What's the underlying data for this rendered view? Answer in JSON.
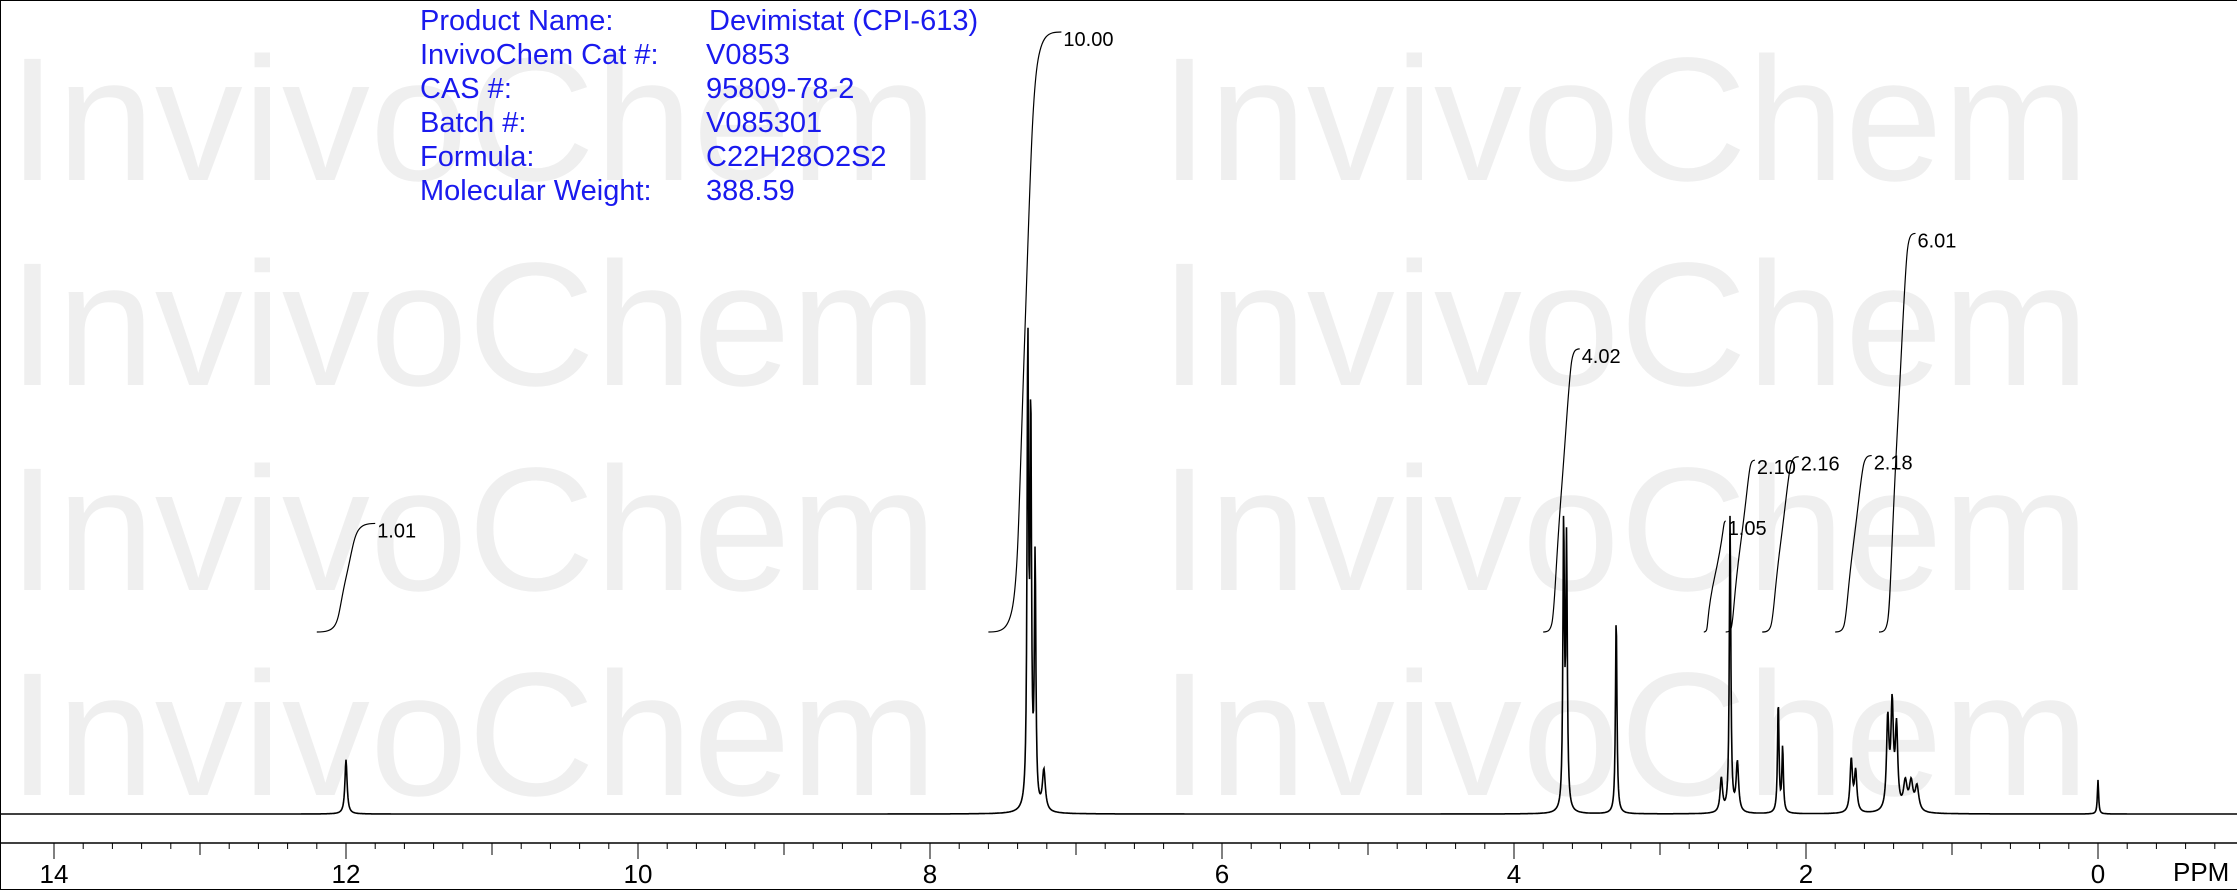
{
  "watermark": {
    "text": "InvivoChem"
  },
  "product_info": [
    {
      "label": "Product Name:",
      "value": "Devimistat (CPI-613)"
    },
    {
      "label": "InvivoChem Cat #:",
      "value": "V0853"
    },
    {
      "label": "CAS #:",
      "value": "95809-78-2"
    },
    {
      "label": "Batch #:",
      "value": "V085301"
    },
    {
      "label": "Formula:",
      "value": "C22H28O2S2"
    },
    {
      "label": "Molecular Weight:",
      "value": "388.59"
    }
  ],
  "colors": {
    "info_text": "#1a1aee",
    "watermark": "#efefef",
    "trace": "#000000"
  },
  "chart_data": {
    "type": "line",
    "title": "",
    "xlabel": "PPM",
    "ylabel": "",
    "xlim": [
      14.3,
      -0.9
    ],
    "x_reversed": true,
    "grid": false,
    "x_ticks": [
      14,
      12,
      10,
      8,
      6,
      4,
      2,
      0
    ],
    "peaks": [
      {
        "ppm": 12.0,
        "intensity": 0.175,
        "width": 0.009
      },
      {
        "ppm": 7.33,
        "intensity": 1.5,
        "width": 0.006
      },
      {
        "ppm": 7.31,
        "intensity": 1.25,
        "width": 0.006
      },
      {
        "ppm": 7.28,
        "intensity": 0.8,
        "width": 0.006
      },
      {
        "ppm": 7.22,
        "intensity": 0.13,
        "width": 0.012
      },
      {
        "ppm": 3.66,
        "intensity": 0.92,
        "width": 0.006
      },
      {
        "ppm": 3.64,
        "intensity": 0.85,
        "width": 0.006
      },
      {
        "ppm": 3.3,
        "intensity": 0.64,
        "width": 0.006
      },
      {
        "ppm": 2.58,
        "intensity": 0.11,
        "width": 0.01
      },
      {
        "ppm": 2.52,
        "intensity": 0.96,
        "width": 0.006
      },
      {
        "ppm": 2.47,
        "intensity": 0.16,
        "width": 0.01
      },
      {
        "ppm": 2.19,
        "intensity": 0.36,
        "width": 0.006
      },
      {
        "ppm": 2.16,
        "intensity": 0.21,
        "width": 0.006
      },
      {
        "ppm": 1.69,
        "intensity": 0.17,
        "width": 0.01
      },
      {
        "ppm": 1.66,
        "intensity": 0.13,
        "width": 0.01
      },
      {
        "ppm": 1.44,
        "intensity": 0.29,
        "width": 0.01
      },
      {
        "ppm": 1.41,
        "intensity": 0.33,
        "width": 0.01
      },
      {
        "ppm": 1.38,
        "intensity": 0.26,
        "width": 0.01
      },
      {
        "ppm": 1.32,
        "intensity": 0.09,
        "width": 0.015
      },
      {
        "ppm": 1.28,
        "intensity": 0.09,
        "width": 0.015
      },
      {
        "ppm": 1.24,
        "intensity": 0.08,
        "width": 0.015
      },
      {
        "ppm": 0.0,
        "intensity": 0.11,
        "width": 0.005
      }
    ],
    "integrals": [
      {
        "label": "1.01",
        "from": 12.2,
        "to": 11.8
      },
      {
        "label": "10.00",
        "from": 7.6,
        "to": 7.1
      },
      {
        "label": "4.02",
        "from": 3.8,
        "to": 3.55
      },
      {
        "label": "1.05",
        "from": 2.7,
        "to": 2.55
      },
      {
        "label": "2.10",
        "from": 2.55,
        "to": 2.35
      },
      {
        "label": "2.16",
        "from": 2.3,
        "to": 2.05
      },
      {
        "label": "2.18",
        "from": 1.8,
        "to": 1.55
      },
      {
        "label": "6.01",
        "from": 1.5,
        "to": 1.25
      }
    ]
  }
}
